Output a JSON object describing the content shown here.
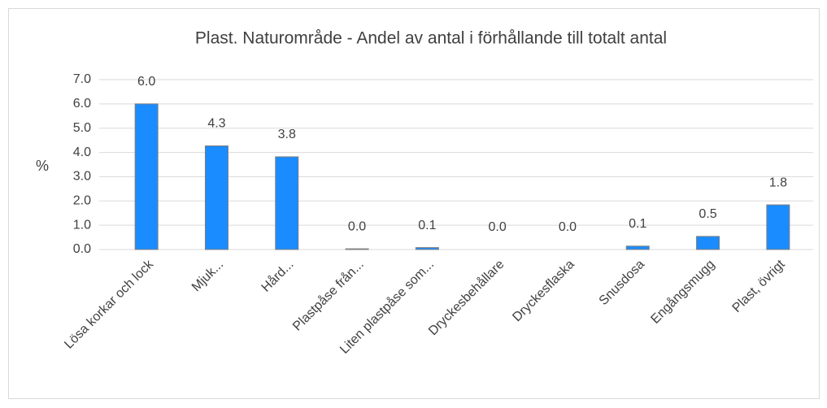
{
  "chart_data": {
    "type": "bar",
    "title": "Plast. Naturområde - Andel av antal i förhållande till totalt antal",
    "y_label": "%",
    "categories": [
      "Lösa korkar och lock",
      "Mjuk...",
      "Hård...",
      "Plastpåse från...",
      "Liten plastpåse som...",
      "Dryckesbehållare",
      "Dryckesflaska",
      "Snusdosa",
      "Engångsmugg",
      "Plast, övrigt"
    ],
    "values": [
      6.0,
      4.27,
      3.82,
      0.03,
      0.08,
      0,
      0,
      0.14,
      0.54,
      1.84
    ],
    "value_labels": [
      "6.0",
      "4.3",
      "3.8",
      "0.0",
      "0.1",
      "0.0",
      "0.0",
      "0.1",
      "0.5",
      "1.8"
    ],
    "color": "#1a8cff",
    "ylim": [
      0,
      7
    ],
    "yticks": [
      {
        "value": 0,
        "label": "0.0"
      },
      {
        "value": 1,
        "label": "1.0"
      },
      {
        "value": 2,
        "label": "2.0"
      },
      {
        "value": 3,
        "label": "3.0"
      },
      {
        "value": 4,
        "label": "4.0"
      },
      {
        "value": 5,
        "label": "5.0"
      },
      {
        "value": 6,
        "label": "6.0"
      },
      {
        "value": 7,
        "label": "7.0"
      }
    ],
    "grid": true
  }
}
